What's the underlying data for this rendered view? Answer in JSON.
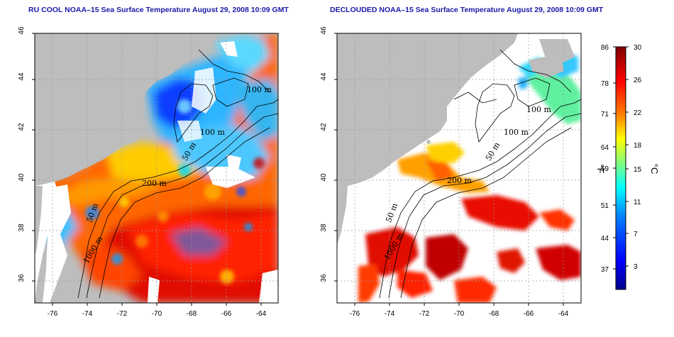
{
  "panels": [
    {
      "title": "RU COOL NOAA–15 Sea Surface Temperature August 29, 2008 10:09 GMT"
    },
    {
      "title": "DECLOUDED NOAA–15 Sea Surface Temperature August 29, 2008 10:09 GMT"
    }
  ],
  "axes": {
    "lon_ticks": [
      "-76",
      "-74",
      "-72",
      "-70",
      "-68",
      "-66",
      "-64"
    ],
    "lat_ticks": [
      "36",
      "38",
      "40",
      "42",
      "44",
      "46"
    ]
  },
  "contour_labels": {
    "left": [
      "100 m",
      "100 m",
      "50 m",
      "200 m",
      "50 m",
      "1000 m"
    ],
    "right": [
      "100 m",
      "100 m",
      "50 m",
      "200 m",
      "50 m",
      "1000 m"
    ]
  },
  "colorbar": {
    "f_ticks": [
      "86",
      "78",
      "71",
      "64",
      "59",
      "51",
      "44",
      "37"
    ],
    "c_ticks": [
      "30",
      "26",
      "22",
      "18",
      "15",
      "11",
      "7",
      "3"
    ],
    "f_unit": "°F",
    "c_unit": "°C"
  },
  "colors": {
    "land": "#bdbdbd",
    "title": "#1a1aa8",
    "scale": [
      "#00008f",
      "#0000ff",
      "#0080ff",
      "#00ffff",
      "#80ff80",
      "#ffff00",
      "#ff8000",
      "#ff0000",
      "#800000"
    ]
  }
}
